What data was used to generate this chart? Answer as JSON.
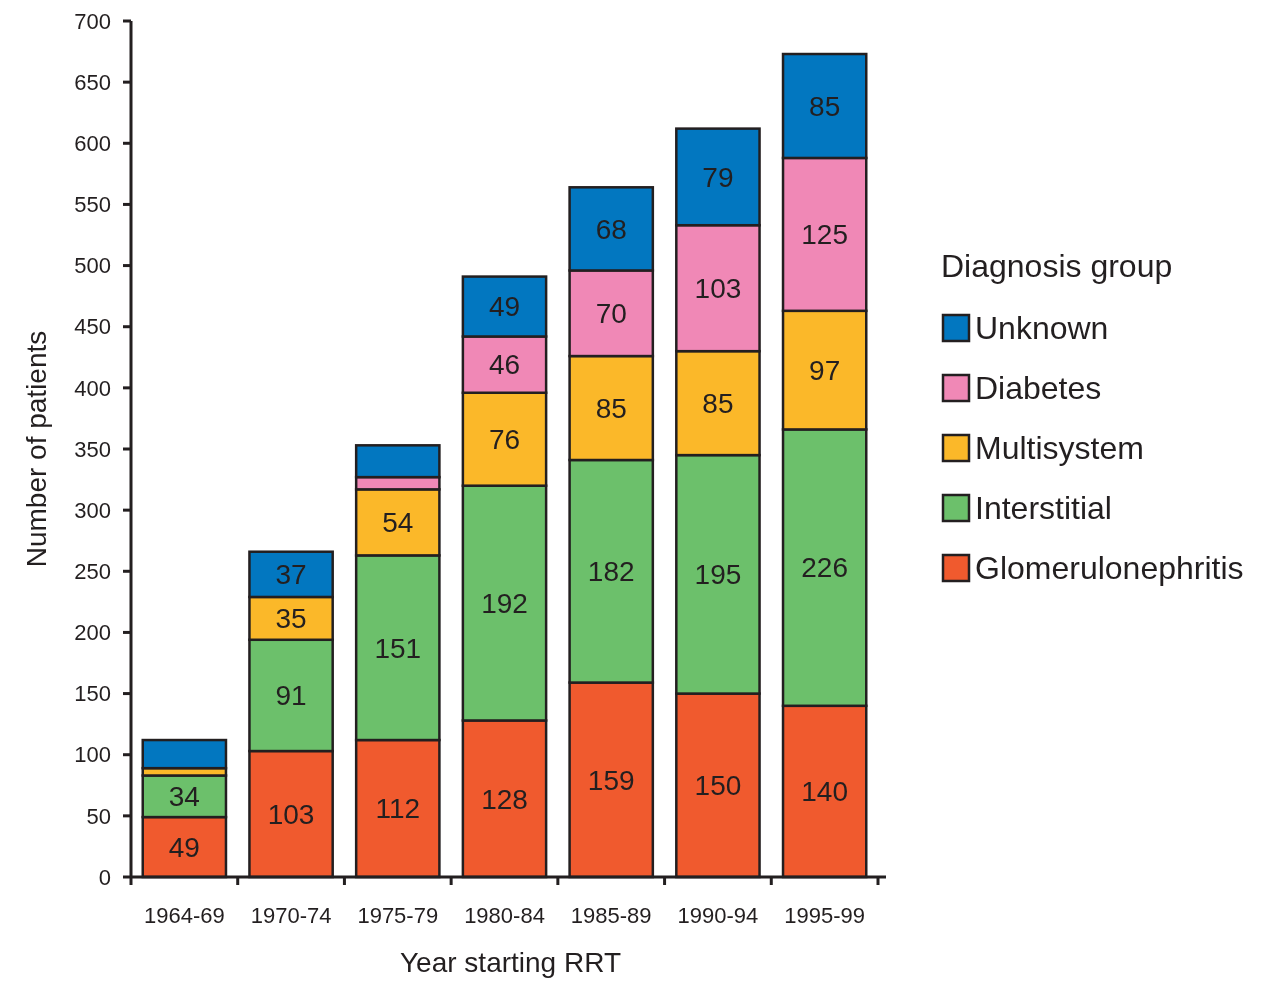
{
  "chart_data": {
    "type": "bar",
    "stacked": true,
    "xlabel": "Year starting RRT",
    "ylabel": "Number of patients",
    "legend_title": "Diagnosis group",
    "legend": "right",
    "categories": [
      "1964-69",
      "1970-74",
      "1975-79",
      "1980-84",
      "1985-89",
      "1990-94",
      "1995-99"
    ],
    "series": [
      {
        "name": "Glomerulonephritis",
        "color": "#f05a2e",
        "values": [
          49,
          103,
          112,
          128,
          159,
          150,
          140
        ],
        "value_labels": [
          "49",
          "103",
          "112",
          "128",
          "159",
          "150",
          "140"
        ]
      },
      {
        "name": "Interstitial",
        "color": "#6cc06b",
        "values": [
          34,
          91,
          151,
          192,
          182,
          195,
          226
        ],
        "value_labels": [
          "34",
          "91",
          "151",
          "192",
          "182",
          "195",
          "226"
        ]
      },
      {
        "name": "Multisystem",
        "color": "#fbb829",
        "values": [
          6,
          35,
          54,
          76,
          85,
          85,
          97
        ],
        "value_labels": [
          null,
          "35",
          "54",
          "76",
          "85",
          "85",
          "97"
        ]
      },
      {
        "name": "Diabetes",
        "color": "#f088b6",
        "values": [
          0,
          0,
          10,
          46,
          70,
          103,
          125
        ],
        "value_labels": [
          null,
          null,
          null,
          "46",
          "70",
          "103",
          "125"
        ]
      },
      {
        "name": "Unknown",
        "color": "#0277c0",
        "values": [
          23,
          37,
          26,
          49,
          68,
          79,
          85
        ],
        "value_labels": [
          null,
          "37",
          null,
          "49",
          "68",
          "79",
          "85"
        ]
      }
    ],
    "ylim": [
      0,
      700
    ],
    "yticks": [
      0,
      50,
      100,
      150,
      200,
      250,
      300,
      350,
      400,
      450,
      500,
      550,
      600,
      650,
      700
    ],
    "grid": false
  }
}
